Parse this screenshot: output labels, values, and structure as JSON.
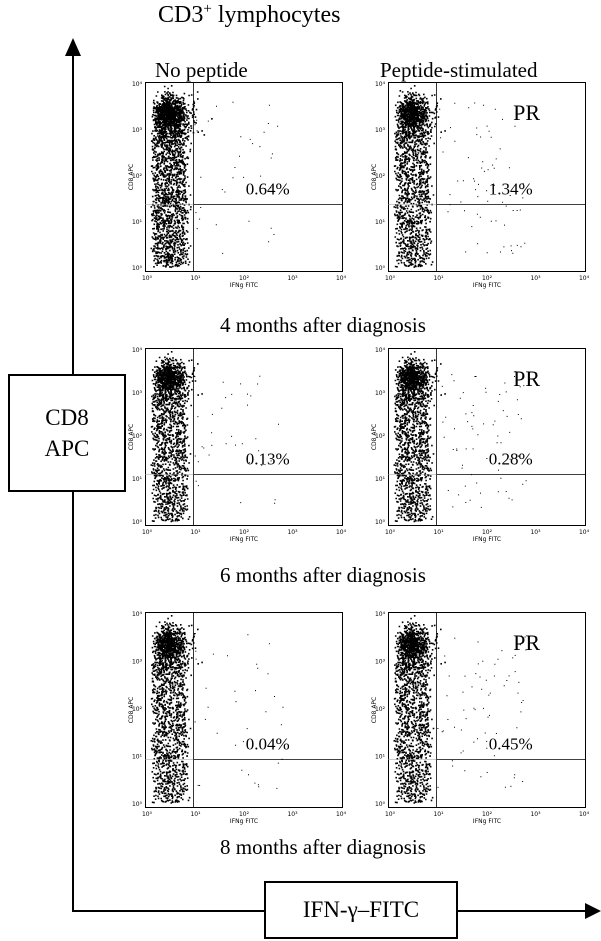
{
  "title_main": "CD3",
  "title_sup": "+",
  "title_rest": " lymphocytes",
  "columns": [
    "No peptide",
    "Peptide-stimulated"
  ],
  "y_axis_label_line1": "CD8",
  "y_axis_label_line2": "APC",
  "x_axis_label": "IFN-γ–FITC",
  "chart_data": {
    "type": "scatter",
    "panel_axes": {
      "xlabel": "IFNg FITC",
      "ylabel": "CD8 APC",
      "xticks": [
        "10⁰",
        "10¹",
        "10²",
        "10³",
        "10⁴"
      ],
      "yticks": [
        "10⁰",
        "10¹",
        "10²",
        "10³",
        "10⁴"
      ],
      "xlim": [
        1,
        10000
      ],
      "ylim": [
        1,
        10000
      ],
      "scale": "log"
    },
    "rows": [
      {
        "caption": "4 months after diagnosis",
        "panels": [
          {
            "column": "No peptide",
            "percent": "0.64%",
            "label": ""
          },
          {
            "column": "Peptide-stimulated",
            "percent": "1.34%",
            "label": "PR"
          }
        ]
      },
      {
        "caption": "6 months after diagnosis",
        "panels": [
          {
            "column": "No peptide",
            "percent": "0.13%",
            "label": ""
          },
          {
            "column": "Peptide-stimulated",
            "percent": "0.28%",
            "label": "PR"
          }
        ]
      },
      {
        "caption": "8 months after diagnosis",
        "panels": [
          {
            "column": "No peptide",
            "percent": "0.04%",
            "label": ""
          },
          {
            "column": "Peptide-stimulated",
            "percent": "0.45%",
            "label": "PR"
          }
        ]
      }
    ]
  }
}
